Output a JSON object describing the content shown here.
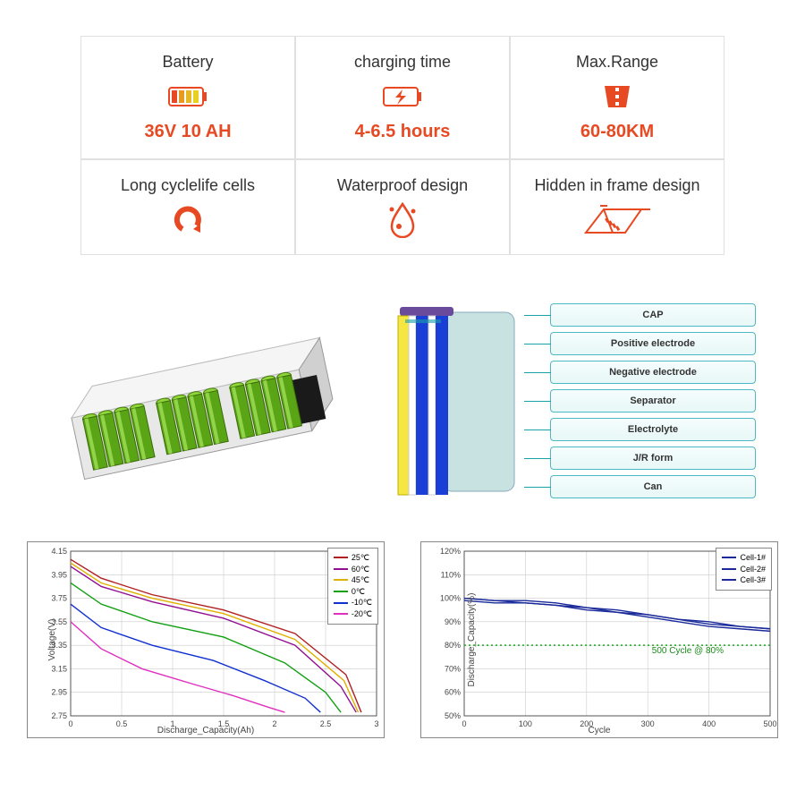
{
  "specs": [
    {
      "title": "Battery",
      "value": "36V 10 AH",
      "value_color": "#e74a22",
      "icon": "battery"
    },
    {
      "title": "charging time",
      "value": "4-6.5 hours",
      "value_color": "#e74a22",
      "icon": "charge"
    },
    {
      "title": "Max.Range",
      "value": "60-80KM",
      "value_color": "#e74a22",
      "icon": "range"
    },
    {
      "title": "Long cyclelife cells",
      "value": "",
      "value_color": "",
      "icon": "cycle"
    },
    {
      "title": "Waterproof design",
      "value": "",
      "value_color": "",
      "icon": "water"
    },
    {
      "title": "Hidden in frame design",
      "value": "",
      "value_color": "",
      "icon": "frame"
    }
  ],
  "cell_labels": [
    "CAP",
    "Positive electrode",
    "Negative electrode",
    "Separator",
    "Electrolyte",
    "J/R form",
    "Can"
  ],
  "cell_layers": {
    "cap_color": "#6a4a9a",
    "layer_colors": [
      "#f5e642",
      "#ffffff",
      "#1a3fd6",
      "#ffffff",
      "#1a3fd6"
    ],
    "can_color": "#b8d8d8"
  },
  "chart_left": {
    "type": "line",
    "title": "",
    "xlabel": "Discharge_Capacity(Ah)",
    "ylabel": "Voltage(V)",
    "xlim": [
      0.0,
      3.0
    ],
    "xtick_step": 0.5,
    "ylim": [
      2.75,
      4.15
    ],
    "yticks": [
      2.75,
      2.95,
      3.15,
      3.35,
      3.55,
      3.75,
      3.95,
      4.15
    ],
    "grid_color": "#cccccc",
    "background": "#ffffff",
    "series": [
      {
        "name": "25℃",
        "color": "#b02020",
        "data": [
          [
            0,
            4.08
          ],
          [
            0.3,
            3.92
          ],
          [
            0.8,
            3.78
          ],
          [
            1.5,
            3.65
          ],
          [
            2.2,
            3.45
          ],
          [
            2.7,
            3.1
          ],
          [
            2.85,
            2.78
          ]
        ]
      },
      {
        "name": "60℃",
        "color": "#901090",
        "data": [
          [
            0,
            4.02
          ],
          [
            0.3,
            3.85
          ],
          [
            0.8,
            3.72
          ],
          [
            1.5,
            3.58
          ],
          [
            2.2,
            3.35
          ],
          [
            2.65,
            3.0
          ],
          [
            2.8,
            2.78
          ]
        ]
      },
      {
        "name": "45℃",
        "color": "#e0b000",
        "data": [
          [
            0,
            4.05
          ],
          [
            0.3,
            3.88
          ],
          [
            0.8,
            3.75
          ],
          [
            1.5,
            3.62
          ],
          [
            2.2,
            3.4
          ],
          [
            2.68,
            3.05
          ],
          [
            2.82,
            2.78
          ]
        ]
      },
      {
        "name": "0℃",
        "color": "#10a010",
        "data": [
          [
            0,
            3.88
          ],
          [
            0.3,
            3.7
          ],
          [
            0.8,
            3.55
          ],
          [
            1.5,
            3.42
          ],
          [
            2.1,
            3.2
          ],
          [
            2.5,
            2.95
          ],
          [
            2.65,
            2.78
          ]
        ]
      },
      {
        "name": "-10℃",
        "color": "#1030d0",
        "data": [
          [
            0,
            3.7
          ],
          [
            0.3,
            3.5
          ],
          [
            0.8,
            3.35
          ],
          [
            1.4,
            3.22
          ],
          [
            1.9,
            3.05
          ],
          [
            2.3,
            2.9
          ],
          [
            2.45,
            2.78
          ]
        ]
      },
      {
        "name": "-20℃",
        "color": "#e030c0",
        "data": [
          [
            0,
            3.55
          ],
          [
            0.3,
            3.32
          ],
          [
            0.7,
            3.15
          ],
          [
            1.2,
            3.02
          ],
          [
            1.6,
            2.92
          ],
          [
            1.95,
            2.82
          ],
          [
            2.1,
            2.78
          ]
        ]
      }
    ],
    "label_fontsize": 10
  },
  "chart_right": {
    "type": "line",
    "title": "",
    "xlabel": "Cycle",
    "ylabel": "Discharge_Capacity(%)",
    "xlim": [
      0,
      500
    ],
    "xtick_step": 100,
    "ylim": [
      50,
      120
    ],
    "ytick_step": 10,
    "grid_color": "#cccccc",
    "background": "#ffffff",
    "series": [
      {
        "name": "Cell-1#",
        "color": "#1a2a9a",
        "data": [
          [
            0,
            100
          ],
          [
            50,
            99
          ],
          [
            100,
            99
          ],
          [
            150,
            98
          ],
          [
            200,
            96
          ],
          [
            250,
            95
          ],
          [
            300,
            93
          ],
          [
            350,
            91
          ],
          [
            400,
            89
          ],
          [
            450,
            88
          ],
          [
            500,
            87
          ]
        ]
      },
      {
        "name": "Cell-2#",
        "color": "#1a2a9a",
        "data": [
          [
            0,
            99
          ],
          [
            50,
            98
          ],
          [
            100,
            98
          ],
          [
            150,
            97
          ],
          [
            200,
            95
          ],
          [
            250,
            94
          ],
          [
            300,
            92
          ],
          [
            350,
            90
          ],
          [
            400,
            88
          ],
          [
            450,
            87
          ],
          [
            500,
            86
          ]
        ]
      },
      {
        "name": "Cell-3#",
        "color": "#1a2a9a",
        "data": [
          [
            0,
            100
          ],
          [
            50,
            99
          ],
          [
            100,
            98
          ],
          [
            150,
            97
          ],
          [
            200,
            96
          ],
          [
            250,
            94
          ],
          [
            300,
            93
          ],
          [
            350,
            91
          ],
          [
            400,
            90
          ],
          [
            450,
            88
          ],
          [
            500,
            87
          ]
        ]
      }
    ],
    "reference_line": {
      "y": 80,
      "color": "#1aa51a",
      "style": "dotted",
      "label": "500 Cycle @ 80%"
    },
    "label_fontsize": 10
  }
}
